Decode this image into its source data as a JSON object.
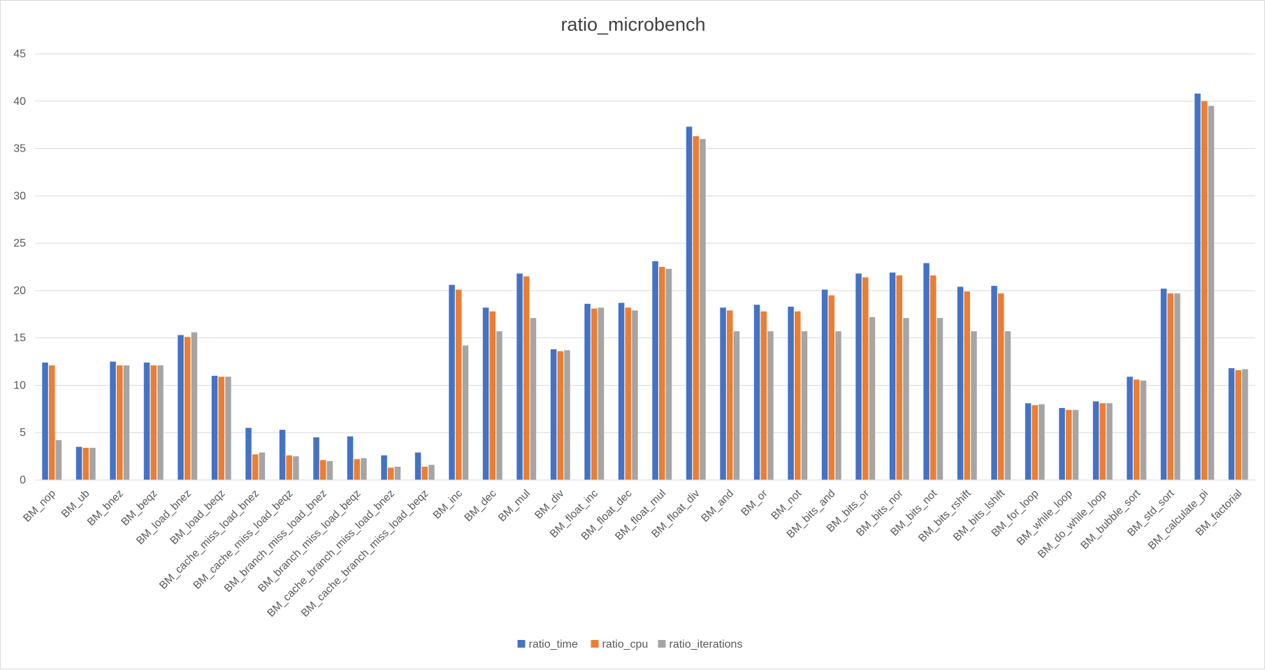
{
  "chart_data": {
    "type": "bar",
    "title": "ratio_microbench",
    "xlabel": "",
    "ylabel": "",
    "ylim": [
      0,
      45
    ],
    "yticks": [
      0,
      5,
      10,
      15,
      20,
      25,
      30,
      35,
      40,
      45
    ],
    "grid": true,
    "legend_position": "bottom",
    "categories": [
      "BM_nop",
      "BM_ub",
      "BM_bnez",
      "BM_beqz",
      "BM_load_bnez",
      "BM_load_beqz",
      "BM_cache_miss_load_bnez",
      "BM_cache_miss_load_beqz",
      "BM_branch_miss_load_bnez",
      "BM_branch_miss_load_beqz",
      "BM_cache_branch_miss_load_bnez",
      "BM_cache_branch_miss_load_beqz",
      "BM_inc",
      "BM_dec",
      "BM_mul",
      "BM_div",
      "BM_float_inc",
      "BM_float_dec",
      "BM_float_mul",
      "BM_float_div",
      "BM_and",
      "BM_or",
      "BM_not",
      "BM_bits_and",
      "BM_bits_or",
      "BM_bits_nor",
      "BM_bits_not",
      "BM_bits_rshift",
      "BM_bits_lshift",
      "BM_for_loop",
      "BM_while_loop",
      "BM_do_while_loop",
      "BM_bubble_sort",
      "BM_std_sort",
      "BM_calculate_pi",
      "BM_factorial"
    ],
    "series": [
      {
        "name": "ratio_time",
        "color": "#4472C4",
        "values": [
          12.4,
          3.5,
          12.5,
          12.4,
          15.3,
          11.0,
          5.5,
          5.3,
          4.5,
          4.6,
          2.6,
          2.9,
          20.6,
          18.2,
          21.8,
          13.8,
          18.6,
          18.7,
          23.1,
          37.3,
          18.2,
          18.5,
          18.3,
          20.1,
          21.8,
          21.9,
          22.9,
          20.4,
          20.5,
          8.1,
          7.6,
          8.3,
          10.9,
          20.2,
          40.8,
          11.8
        ]
      },
      {
        "name": "ratio_cpu",
        "color": "#ED7D31",
        "values": [
          12.1,
          3.4,
          12.1,
          12.1,
          15.1,
          10.9,
          2.7,
          2.6,
          2.1,
          2.2,
          1.3,
          1.4,
          20.1,
          17.8,
          21.5,
          13.6,
          18.1,
          18.2,
          22.5,
          36.3,
          17.9,
          17.8,
          17.8,
          19.5,
          21.4,
          21.6,
          21.6,
          19.9,
          19.7,
          7.9,
          7.4,
          8.1,
          10.6,
          19.7,
          40.0,
          11.6
        ]
      },
      {
        "name": "ratio_iterations",
        "color": "#A5A5A5",
        "values": [
          4.2,
          3.4,
          12.1,
          12.1,
          15.6,
          10.9,
          2.9,
          2.5,
          2.0,
          2.3,
          1.4,
          1.6,
          14.2,
          15.7,
          17.1,
          13.7,
          18.2,
          17.9,
          22.3,
          36.0,
          15.7,
          15.7,
          15.7,
          15.7,
          17.2,
          17.1,
          17.1,
          15.7,
          15.7,
          8.0,
          7.4,
          8.1,
          10.5,
          19.7,
          39.5,
          11.7
        ]
      }
    ]
  }
}
